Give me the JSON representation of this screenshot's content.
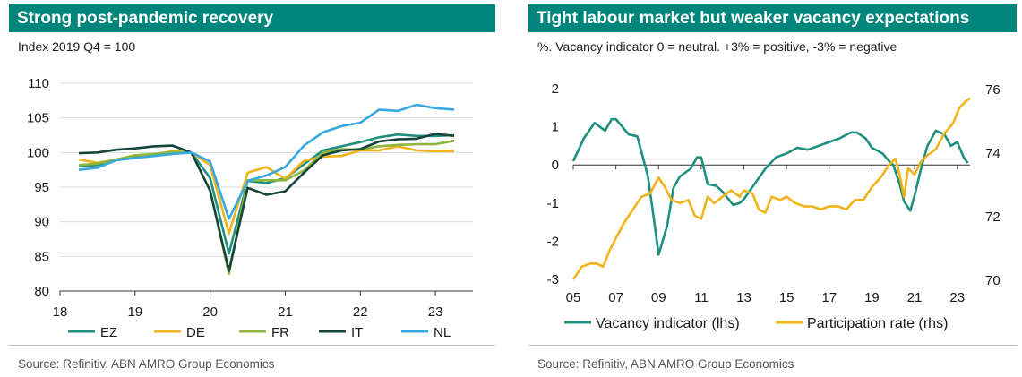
{
  "chart_data": [
    {
      "type": "line",
      "title": "Strong post-pandemic recovery",
      "subtitle": "Index 2019 Q4 = 100",
      "source": "Source: Refinitiv, ABN AMRO Group Economics",
      "x_ticks": [
        "18",
        "19",
        "20",
        "21",
        "22",
        "23"
      ],
      "xlim": [
        2018,
        2023.5
      ],
      "ylim": [
        80,
        110
      ],
      "y_ticks": [
        80,
        85,
        90,
        95,
        100,
        105,
        110
      ],
      "grid": "horizontal",
      "legend_position": "bottom",
      "x": [
        2018.25,
        2018.5,
        2018.75,
        2019.0,
        2019.25,
        2019.5,
        2019.75,
        2020.0,
        2020.25,
        2020.5,
        2020.75,
        2021.0,
        2021.25,
        2021.5,
        2021.75,
        2022.0,
        2022.25,
        2022.5,
        2022.75,
        2023.0,
        2023.25
      ],
      "series": [
        {
          "name": "EZ",
          "color": "#1f8f7f",
          "values": [
            98.0,
            98.2,
            98.9,
            99.4,
            99.6,
            99.9,
            100.0,
            96.3,
            85.4,
            95.9,
            95.6,
            96.3,
            98.3,
            100.3,
            100.9,
            101.5,
            102.2,
            102.6,
            102.4,
            102.4,
            102.5
          ]
        },
        {
          "name": "DE",
          "color": "#f0b31a",
          "values": [
            99.0,
            98.5,
            99.0,
            99.6,
            99.7,
            100.2,
            100.0,
            98.2,
            88.3,
            97.1,
            97.9,
            96.2,
            98.8,
            99.4,
            99.5,
            100.3,
            100.3,
            100.9,
            100.3,
            100.2,
            100.2
          ]
        },
        {
          "name": "FR",
          "color": "#8db63c",
          "values": [
            98.2,
            98.4,
            99.0,
            99.6,
            99.8,
            100.1,
            100.0,
            94.5,
            82.5,
            96.0,
            96.0,
            96.0,
            97.4,
            100.0,
            100.5,
            100.4,
            100.9,
            101.1,
            101.2,
            101.2,
            101.7
          ]
        },
        {
          "name": "IT",
          "color": "#15453a",
          "values": [
            99.9,
            100.0,
            100.4,
            100.6,
            100.9,
            101.0,
            100.0,
            94.5,
            82.9,
            94.9,
            93.9,
            94.4,
            97.1,
            99.6,
            100.3,
            100.5,
            101.6,
            101.9,
            102.0,
            102.7,
            102.4
          ]
        },
        {
          "name": "NL",
          "color": "#35a8e0",
          "values": [
            97.5,
            97.8,
            98.9,
            99.2,
            99.5,
            99.8,
            100.0,
            98.7,
            90.4,
            95.9,
            96.7,
            97.9,
            101.0,
            102.9,
            103.8,
            104.3,
            106.2,
            106.0,
            106.9,
            106.4,
            106.2
          ]
        }
      ]
    },
    {
      "type": "line",
      "title": "Tight labour market but weaker vacancy expectations",
      "subtitle": "%. Vacancy indicator 0 = neutral. +3% = positive, -3% = negative",
      "source": "Source: Refinitiv, ABN AMRO Group Economics",
      "x_ticks": [
        "05",
        "07",
        "09",
        "11",
        "13",
        "15",
        "17",
        "19",
        "21",
        "23"
      ],
      "xlim": [
        2005,
        2023.6
      ],
      "ylim_left": [
        -3,
        2
      ],
      "y_ticks_left": [
        -3,
        -2,
        -1,
        0,
        1,
        2
      ],
      "ylim_right": [
        70,
        76
      ],
      "y_ticks_right": [
        70,
        72,
        74,
        76
      ],
      "legend_position": "bottom",
      "series": [
        {
          "name": "Vacancy indicator (lhs)",
          "color": "#1f8f7f",
          "axis": "left",
          "x": [
            2005.0,
            2005.5,
            2006.0,
            2006.5,
            2006.8,
            2007.0,
            2007.3,
            2007.6,
            2008.0,
            2008.5,
            2008.8,
            2009.0,
            2009.4,
            2009.7,
            2010.0,
            2010.5,
            2010.8,
            2011.0,
            2011.3,
            2011.7,
            2012.0,
            2012.5,
            2012.8,
            2013.0,
            2013.5,
            2014.0,
            2014.5,
            2015.0,
            2015.5,
            2016.0,
            2016.5,
            2017.0,
            2017.5,
            2018.0,
            2018.3,
            2018.7,
            2019.0,
            2019.5,
            2019.8,
            2020.0,
            2020.3,
            2020.5,
            2020.8,
            2021.0,
            2021.3,
            2021.6,
            2022.0,
            2022.4,
            2022.7,
            2023.0,
            2023.3,
            2023.5
          ],
          "values": [
            0.1,
            0.7,
            1.1,
            0.9,
            1.2,
            1.2,
            1.0,
            0.8,
            0.75,
            -0.3,
            -1.5,
            -2.35,
            -1.6,
            -0.6,
            -0.3,
            -0.1,
            0.2,
            0.2,
            -0.5,
            -0.55,
            -0.7,
            -1.05,
            -1.0,
            -0.9,
            -0.5,
            -0.1,
            0.2,
            0.3,
            0.45,
            0.4,
            0.5,
            0.6,
            0.7,
            0.85,
            0.85,
            0.7,
            0.45,
            0.3,
            0.1,
            0.0,
            -0.5,
            -0.95,
            -1.2,
            -0.8,
            -0.1,
            0.5,
            0.9,
            0.8,
            0.5,
            0.6,
            0.2,
            0.05
          ]
        },
        {
          "name": "Participation rate (rhs)",
          "color": "#f0b31a",
          "axis": "right",
          "x": [
            2005.0,
            2005.4,
            2005.8,
            2006.1,
            2006.4,
            2006.7,
            2007.0,
            2007.4,
            2007.8,
            2008.2,
            2008.6,
            2009.0,
            2009.3,
            2009.6,
            2010.0,
            2010.4,
            2010.7,
            2011.0,
            2011.3,
            2011.6,
            2012.0,
            2012.4,
            2012.8,
            2013.0,
            2013.4,
            2013.7,
            2014.0,
            2014.3,
            2014.7,
            2015.0,
            2015.4,
            2015.8,
            2016.2,
            2016.6,
            2017.0,
            2017.4,
            2017.8,
            2018.2,
            2018.6,
            2019.0,
            2019.4,
            2019.8,
            2020.1,
            2020.3,
            2020.5,
            2020.7,
            2021.0,
            2021.3,
            2021.6,
            2022.0,
            2022.4,
            2022.8,
            2023.1,
            2023.4,
            2023.6
          ],
          "values": [
            70.0,
            70.4,
            70.5,
            70.5,
            70.4,
            70.9,
            71.3,
            71.8,
            72.2,
            72.6,
            72.7,
            73.2,
            72.9,
            72.5,
            72.4,
            72.5,
            72.0,
            71.9,
            72.6,
            72.4,
            72.6,
            72.8,
            72.6,
            72.8,
            72.7,
            72.2,
            72.1,
            72.6,
            72.5,
            72.6,
            72.4,
            72.3,
            72.3,
            72.2,
            72.3,
            72.3,
            72.2,
            72.5,
            72.5,
            72.9,
            73.2,
            73.6,
            73.8,
            73.3,
            72.6,
            73.5,
            73.3,
            73.7,
            73.9,
            74.1,
            74.6,
            74.9,
            75.4,
            75.6,
            75.7
          ]
        }
      ]
    }
  ]
}
